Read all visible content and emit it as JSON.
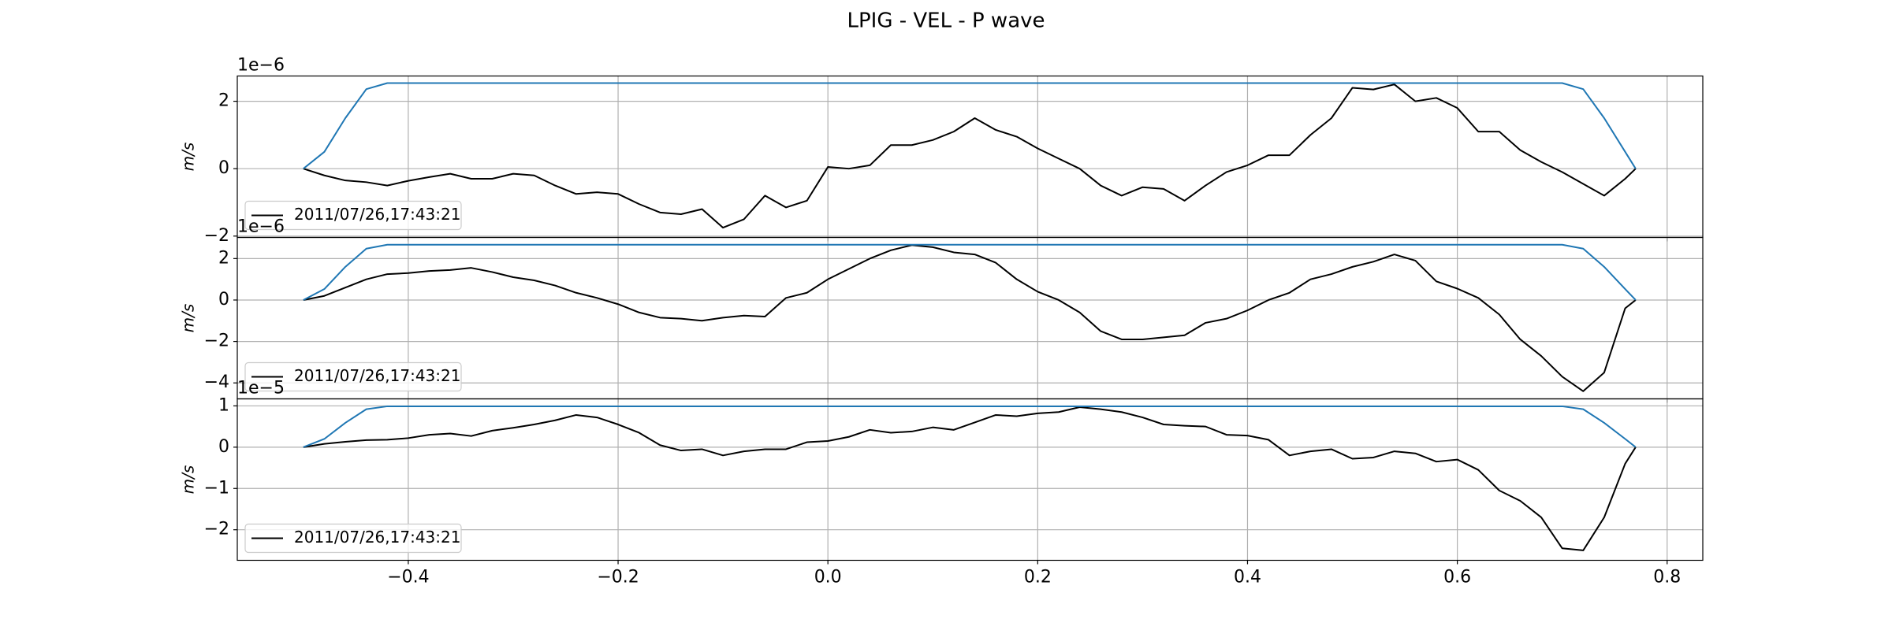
{
  "title": "LPIG - VEL - P wave",
  "chart_data": [
    {
      "type": "line",
      "ylabel": "m/s",
      "offset_text": "1e−6",
      "grid": true,
      "legend": "lower left",
      "xlim": [
        -0.563,
        0.834
      ],
      "xticks": [
        {
          "value": -0.4,
          "label": "−0.4"
        },
        {
          "value": -0.2,
          "label": "−0.2"
        },
        {
          "value": 0,
          "label": "0.0"
        },
        0.2,
        0.4,
        0.6,
        0.8
      ],
      "ylim": [
        -2.04,
        2.75
      ],
      "yticks": [
        {
          "value": -2,
          "label": "−2"
        },
        0,
        2
      ],
      "x": [
        -0.5,
        -0.48,
        -0.46,
        -0.44,
        -0.42,
        -0.4,
        -0.38,
        -0.36,
        -0.34,
        -0.32,
        -0.3,
        -0.28,
        -0.26,
        -0.24,
        -0.22,
        -0.2,
        -0.18,
        -0.16,
        -0.14,
        -0.12,
        -0.1,
        -0.08,
        -0.06,
        -0.04,
        -0.02,
        0,
        0.02,
        0.04,
        0.06,
        0.08,
        0.1,
        0.12,
        0.14,
        0.16,
        0.18,
        0.2,
        0.22,
        0.24,
        0.26,
        0.28,
        0.3,
        0.32,
        0.34,
        0.36,
        0.38,
        0.4,
        0.42,
        0.44,
        0.46,
        0.48,
        0.5,
        0.52,
        0.54,
        0.56,
        0.58,
        0.6,
        0.62,
        0.64,
        0.66,
        0.68,
        0.7,
        0.72,
        0.74,
        0.76,
        0.77
      ],
      "series": [
        {
          "name": "2011/07/26,17:43:21",
          "color": "#000000",
          "values": [
            0,
            -0.2,
            -0.35,
            -0.4,
            -0.5,
            -0.36,
            -0.25,
            -0.15,
            -0.3,
            -0.3,
            -0.15,
            -0.2,
            -0.5,
            -0.75,
            -0.7,
            -0.75,
            -1.05,
            -1.3,
            -1.35,
            -1.2,
            -1.75,
            -1.5,
            -0.8,
            -1.15,
            -0.95,
            0.05,
            0,
            0.1,
            0.7,
            0.7,
            0.85,
            1.1,
            1.5,
            1.15,
            0.95,
            0.6,
            0.3,
            0,
            -0.5,
            -0.8,
            -0.55,
            -0.6,
            -0.95,
            -0.5,
            -0.1,
            0.1,
            0.4,
            0.4,
            1,
            1.5,
            2.4,
            2.35,
            2.5,
            2,
            2.1,
            1.8,
            1.1,
            1.1,
            0.55,
            0.2,
            -0.1,
            -0.45,
            -0.8,
            -0.3,
            0
          ]
        },
        {
          "color": "#1f77b4",
          "values": [
            0,
            0.5,
            1.5,
            2.36,
            2.54,
            2.54,
            2.54,
            2.54,
            2.54,
            2.54,
            2.54,
            2.54,
            2.54,
            2.54,
            2.54,
            2.54,
            2.54,
            2.54,
            2.54,
            2.54,
            2.54,
            2.54,
            2.54,
            2.54,
            2.54,
            2.54,
            2.54,
            2.54,
            2.54,
            2.54,
            2.54,
            2.54,
            2.54,
            2.54,
            2.54,
            2.54,
            2.54,
            2.54,
            2.54,
            2.54,
            2.54,
            2.54,
            2.54,
            2.54,
            2.54,
            2.54,
            2.54,
            2.54,
            2.54,
            2.54,
            2.54,
            2.54,
            2.54,
            2.54,
            2.54,
            2.54,
            2.54,
            2.54,
            2.54,
            2.54,
            2.54,
            2.36,
            1.5,
            0.5,
            0
          ]
        }
      ]
    },
    {
      "type": "line",
      "ylabel": "m/s",
      "offset_text": "1e−6",
      "grid": true,
      "legend": "lower left",
      "xlim": [
        -0.563,
        0.834
      ],
      "xticks": [
        {
          "value": -0.4,
          "label": "−0.4"
        },
        {
          "value": -0.2,
          "label": "−0.2"
        },
        {
          "value": 0,
          "label": "0.0"
        },
        0.2,
        0.4,
        0.6,
        0.8
      ],
      "ylim": [
        -4.77,
        3.02
      ],
      "yticks": [
        {
          "value": -4,
          "label": "−4"
        },
        {
          "value": -2,
          "label": "−2"
        },
        0,
        2
      ],
      "x": [
        -0.5,
        -0.48,
        -0.46,
        -0.44,
        -0.42,
        -0.4,
        -0.38,
        -0.36,
        -0.34,
        -0.32,
        -0.3,
        -0.28,
        -0.26,
        -0.24,
        -0.22,
        -0.2,
        -0.18,
        -0.16,
        -0.14,
        -0.12,
        -0.1,
        -0.08,
        -0.06,
        -0.04,
        -0.02,
        0,
        0.02,
        0.04,
        0.06,
        0.08,
        0.1,
        0.12,
        0.14,
        0.16,
        0.18,
        0.2,
        0.22,
        0.24,
        0.26,
        0.28,
        0.3,
        0.32,
        0.34,
        0.36,
        0.38,
        0.4,
        0.42,
        0.44,
        0.46,
        0.48,
        0.5,
        0.52,
        0.54,
        0.56,
        0.58,
        0.6,
        0.62,
        0.64,
        0.66,
        0.68,
        0.7,
        0.72,
        0.74,
        0.76,
        0.77
      ],
      "series": [
        {
          "name": "2011/07/26,17:43:21",
          "color": "#000000",
          "values": [
            0,
            0.2,
            0.6,
            1,
            1.25,
            1.3,
            1.4,
            1.45,
            1.55,
            1.35,
            1.1,
            0.95,
            0.7,
            0.35,
            0.1,
            -0.2,
            -0.6,
            -0.85,
            -0.9,
            -1,
            -0.85,
            -0.75,
            -0.8,
            0.1,
            0.35,
            1,
            1.5,
            2,
            2.4,
            2.65,
            2.55,
            2.3,
            2.2,
            1.8,
            1,
            0.4,
            0,
            -0.6,
            -1.5,
            -1.9,
            -1.9,
            -1.8,
            -1.7,
            -1.1,
            -0.9,
            -0.5,
            0,
            0.35,
            1,
            1.25,
            1.6,
            1.85,
            2.2,
            1.9,
            0.9,
            0.55,
            0.1,
            -0.7,
            -1.9,
            -2.7,
            -3.7,
            -4.4,
            -3.5,
            -0.4,
            0
          ]
        },
        {
          "color": "#1f77b4",
          "values": [
            0,
            0.53,
            1.6,
            2.48,
            2.67,
            2.67,
            2.67,
            2.67,
            2.67,
            2.67,
            2.67,
            2.67,
            2.67,
            2.67,
            2.67,
            2.67,
            2.67,
            2.67,
            2.67,
            2.67,
            2.67,
            2.67,
            2.67,
            2.67,
            2.67,
            2.67,
            2.67,
            2.67,
            2.67,
            2.67,
            2.67,
            2.67,
            2.67,
            2.67,
            2.67,
            2.67,
            2.67,
            2.67,
            2.67,
            2.67,
            2.67,
            2.67,
            2.67,
            2.67,
            2.67,
            2.67,
            2.67,
            2.67,
            2.67,
            2.67,
            2.67,
            2.67,
            2.67,
            2.67,
            2.67,
            2.67,
            2.67,
            2.67,
            2.67,
            2.67,
            2.67,
            2.48,
            1.6,
            0.53,
            0
          ]
        }
      ]
    },
    {
      "type": "line",
      "ylabel": "m/s",
      "offset_text": "1e−5",
      "grid": true,
      "legend": "lower left",
      "xlim": [
        -0.563,
        0.834
      ],
      "xticks": [
        {
          "value": -0.4,
          "label": "−0.4"
        },
        {
          "value": -0.2,
          "label": "−0.2"
        },
        {
          "value": 0,
          "label": "0.0"
        },
        0.2,
        0.4,
        0.6,
        0.8
      ],
      "ylim": [
        -2.74,
        1.17
      ],
      "yticks": [
        {
          "value": -2,
          "label": "−2"
        },
        {
          "value": -1,
          "label": "−1"
        },
        0,
        1
      ],
      "x": [
        -0.5,
        -0.48,
        -0.46,
        -0.44,
        -0.42,
        -0.4,
        -0.38,
        -0.36,
        -0.34,
        -0.32,
        -0.3,
        -0.28,
        -0.26,
        -0.24,
        -0.22,
        -0.2,
        -0.18,
        -0.16,
        -0.14,
        -0.12,
        -0.1,
        -0.08,
        -0.06,
        -0.04,
        -0.02,
        0,
        0.02,
        0.04,
        0.06,
        0.08,
        0.1,
        0.12,
        0.14,
        0.16,
        0.18,
        0.2,
        0.22,
        0.24,
        0.26,
        0.28,
        0.3,
        0.32,
        0.34,
        0.36,
        0.38,
        0.4,
        0.42,
        0.44,
        0.46,
        0.48,
        0.5,
        0.52,
        0.54,
        0.56,
        0.58,
        0.6,
        0.62,
        0.64,
        0.66,
        0.68,
        0.7,
        0.72,
        0.74,
        0.76,
        0.77
      ],
      "series": [
        {
          "name": "2011/07/26,17:43:21",
          "color": "#000000",
          "values": [
            0,
            0.08,
            0.13,
            0.17,
            0.18,
            0.22,
            0.3,
            0.33,
            0.27,
            0.4,
            0.47,
            0.55,
            0.65,
            0.78,
            0.72,
            0.55,
            0.35,
            0.05,
            -0.08,
            -0.05,
            -0.2,
            -0.1,
            -0.05,
            -0.05,
            0.12,
            0.15,
            0.25,
            0.42,
            0.35,
            0.38,
            0.48,
            0.42,
            0.6,
            0.78,
            0.75,
            0.82,
            0.85,
            0.97,
            0.92,
            0.85,
            0.72,
            0.55,
            0.52,
            0.5,
            0.3,
            0.28,
            0.18,
            -0.2,
            -0.1,
            -0.05,
            -0.28,
            -0.25,
            -0.1,
            -0.15,
            -0.35,
            -0.3,
            -0.55,
            -1.05,
            -1.3,
            -1.7,
            -2.45,
            -2.5,
            -1.7,
            -0.4,
            0
          ]
        },
        {
          "color": "#1f77b4",
          "values": [
            0,
            0.2,
            0.59,
            0.92,
            0.99,
            0.99,
            0.99,
            0.99,
            0.99,
            0.99,
            0.99,
            0.99,
            0.99,
            0.99,
            0.99,
            0.99,
            0.99,
            0.99,
            0.99,
            0.99,
            0.99,
            0.99,
            0.99,
            0.99,
            0.99,
            0.99,
            0.99,
            0.99,
            0.99,
            0.99,
            0.99,
            0.99,
            0.99,
            0.99,
            0.99,
            0.99,
            0.99,
            0.99,
            0.99,
            0.99,
            0.99,
            0.99,
            0.99,
            0.99,
            0.99,
            0.99,
            0.99,
            0.99,
            0.99,
            0.99,
            0.99,
            0.99,
            0.99,
            0.99,
            0.99,
            0.99,
            0.99,
            0.99,
            0.99,
            0.99,
            0.99,
            0.92,
            0.59,
            0.2,
            0
          ]
        }
      ]
    }
  ]
}
